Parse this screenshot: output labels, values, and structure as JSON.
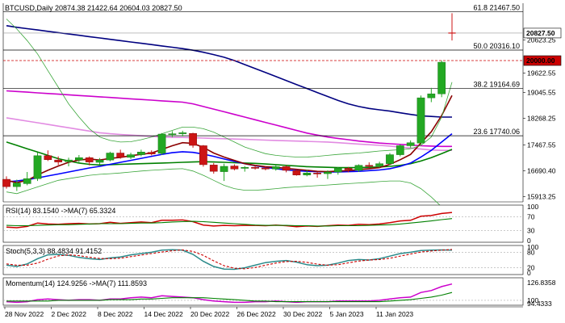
{
  "chart_data": {
    "type": "candlestick",
    "header": "BTCUSD,Daily  20874.38 21422.64 20604.03 20827.50",
    "symbol": "BTCUSD,Daily",
    "last_ohlc": {
      "open": 20874.38,
      "high": 21422.64,
      "low": 20604.03,
      "close": 20827.5
    },
    "y_ticks": [
      "20623.25",
      "19622.55",
      "19045.55",
      "18268.25",
      "17467.55",
      "16690.40",
      "15913.25"
    ],
    "price_badges": [
      {
        "label": "20827.50",
        "value": 20827.5,
        "bg": "#ffffff",
        "fg": "#000000",
        "line_color": "#999999"
      },
      {
        "label": "20000.00",
        "value": 20000.0,
        "bg": "#cc0000",
        "fg": "#ffffff",
        "line_color": "#cc0000"
      }
    ],
    "fib_levels": [
      {
        "label": "61.8 21467.50",
        "value": 21467.5
      },
      {
        "label": "50.0 20316.10",
        "value": 20316.1
      },
      {
        "label": "38.2 19164.69",
        "value": 19164.69
      },
      {
        "label": "23.6 17740.06",
        "value": 17740.06
      }
    ],
    "x_labels": [
      "28 Nov 2022",
      "2 Dec 2022",
      "8 Dec 2022",
      "14 Dec 2022",
      "20 Dec 2022",
      "26 Dec 2022",
      "30 Dec 2022",
      "5 Jan 2023",
      "11 Jan 2023"
    ],
    "ylim": [
      15800,
      21700
    ],
    "candles": [
      [
        16430,
        16520,
        16150,
        16210
      ],
      [
        16210,
        16420,
        16080,
        16320
      ],
      [
        16300,
        16650,
        16250,
        16450
      ],
      [
        16450,
        17230,
        16380,
        17140
      ],
      [
        17140,
        17300,
        16980,
        17020
      ],
      [
        17010,
        17120,
        16860,
        16950
      ],
      [
        16960,
        17080,
        16820,
        17010
      ],
      [
        17010,
        17160,
        16920,
        17080
      ],
      [
        17080,
        17120,
        16850,
        16950
      ],
      [
        16940,
        17070,
        16880,
        17010
      ],
      [
        17010,
        17260,
        16970,
        17220
      ],
      [
        17220,
        17320,
        17050,
        17090
      ],
      [
        17090,
        17230,
        17040,
        17170
      ],
      [
        17170,
        17320,
        17120,
        17250
      ],
      [
        17240,
        17300,
        17150,
        17190
      ],
      [
        17210,
        17820,
        17160,
        17790
      ],
      [
        17790,
        17880,
        17700,
        17800
      ],
      [
        17800,
        17890,
        17720,
        17830
      ],
      [
        17810,
        17830,
        17380,
        17450
      ],
      [
        17440,
        17460,
        16810,
        16870
      ],
      [
        16860,
        16920,
        16600,
        16670
      ],
      [
        16660,
        16900,
        16380,
        16820
      ],
      [
        16830,
        16880,
        16700,
        16740
      ],
      [
        16760,
        16830,
        16660,
        16790
      ],
      [
        16790,
        16850,
        16720,
        16770
      ],
      [
        16770,
        16830,
        16700,
        16740
      ],
      [
        16740,
        16850,
        16690,
        16810
      ],
      [
        16810,
        16850,
        16640,
        16700
      ],
      [
        16690,
        16720,
        16540,
        16560
      ],
      [
        16560,
        16720,
        16520,
        16620
      ],
      [
        16620,
        16650,
        16480,
        16600
      ],
      [
        16600,
        16700,
        16440,
        16650
      ],
      [
        16650,
        16800,
        16570,
        16760
      ],
      [
        16760,
        16800,
        16640,
        16720
      ],
      [
        16700,
        16880,
        16650,
        16850
      ],
      [
        16850,
        16940,
        16780,
        16820
      ],
      [
        16830,
        16960,
        16780,
        16900
      ],
      [
        16900,
        17220,
        16860,
        17170
      ],
      [
        17170,
        17480,
        17120,
        17440
      ],
      [
        17440,
        17600,
        17380,
        17530
      ],
      [
        17520,
        18950,
        17470,
        18880
      ],
      [
        18880,
        19180,
        18750,
        19000
      ],
      [
        19000,
        20000,
        18900,
        19950
      ],
      [
        20874.38,
        21422.64,
        20604.03,
        20827.5
      ]
    ],
    "overlay_series": [
      {
        "color": "#000080",
        "values": [
          21050,
          21000,
          20960,
          20920,
          20880,
          20840,
          20800,
          20760,
          20720,
          20680,
          20640,
          20600,
          20560,
          20520,
          20480,
          20440,
          20400,
          20360,
          20310,
          20250,
          20180,
          20100,
          20000,
          19880,
          19760,
          19640,
          19520,
          19400,
          19280,
          19160,
          19040,
          18920,
          18800,
          18700,
          18620,
          18560,
          18520,
          18480,
          18430,
          18380,
          18340,
          18320,
          18300,
          18300
        ]
      },
      {
        "color": "#cc00cc",
        "values": [
          19090,
          19070,
          19050,
          19030,
          19010,
          18990,
          18970,
          18950,
          18930,
          18910,
          18890,
          18870,
          18850,
          18830,
          18810,
          18790,
          18770,
          18750,
          18700,
          18620,
          18540,
          18460,
          18380,
          18300,
          18220,
          18140,
          18060,
          17980,
          17900,
          17820,
          17760,
          17700,
          17660,
          17620,
          17580,
          17550,
          17520,
          17500,
          17480,
          17460,
          17440,
          17430,
          17420,
          17420
        ]
      },
      {
        "color": "#e28be2",
        "values": [
          18280,
          18230,
          18180,
          18130,
          18080,
          18030,
          17980,
          17930,
          17880,
          17830,
          17800,
          17780,
          17760,
          17740,
          17720,
          17700,
          17690,
          17690,
          17680,
          17670,
          17660,
          17650,
          17640,
          17630,
          17620,
          17610,
          17600,
          17590,
          17580,
          17570,
          17560,
          17550,
          17530,
          17510,
          17490,
          17470,
          17450,
          17430,
          17400,
          17370,
          17340,
          17310,
          17300,
          17300
        ]
      },
      {
        "color": "#008000",
        "values": [
          17550,
          17450,
          17350,
          17250,
          17150,
          17050,
          16980,
          16920,
          16880,
          16860,
          16870,
          16880,
          16890,
          16900,
          16910,
          16920,
          16930,
          16940,
          16950,
          16960,
          16950,
          16940,
          16930,
          16920,
          16910,
          16890,
          16870,
          16850,
          16830,
          16810,
          16800,
          16790,
          16780,
          16780,
          16780,
          16790,
          16800,
          16820,
          16850,
          16900,
          16980,
          17080,
          17200,
          17330
        ]
      },
      {
        "color": "#0000ff",
        "values": [
          16350,
          16380,
          16420,
          16470,
          16530,
          16590,
          16650,
          16710,
          16770,
          16820,
          16880,
          16940,
          17000,
          17060,
          17120,
          17180,
          17230,
          17260,
          17240,
          17190,
          17120,
          17040,
          16970,
          16900,
          16840,
          16790,
          16750,
          16710,
          16690,
          16670,
          16660,
          16650,
          16650,
          16660,
          16670,
          16690,
          16710,
          16750,
          16820,
          16920,
          17100,
          17300,
          17550,
          17800
        ]
      },
      {
        "color": "#8b0000",
        "values": [
          16400,
          16330,
          16400,
          16560,
          16700,
          16830,
          16940,
          17010,
          17040,
          17010,
          17060,
          17090,
          17140,
          17180,
          17220,
          17330,
          17440,
          17530,
          17510,
          17390,
          17220,
          17100,
          17000,
          16900,
          16850,
          16810,
          16790,
          16760,
          16730,
          16700,
          16670,
          16660,
          16680,
          16690,
          16720,
          16750,
          16780,
          16880,
          17020,
          17180,
          17520,
          17860,
          18350,
          18950
        ]
      },
      {
        "color": "#3aa63a",
        "width": 0.8,
        "values": [
          21250,
          20950,
          20600,
          20200,
          19700,
          19200,
          18700,
          18300,
          17950,
          17700,
          17600,
          17550,
          17560,
          17620,
          17700,
          17800,
          17900,
          18000,
          18000,
          17950,
          17850,
          17700,
          17550,
          17400,
          17300,
          17200,
          17150,
          17120,
          17100,
          17100,
          17120,
          17150,
          17180,
          17200,
          17220,
          17250,
          17280,
          17300,
          17320,
          17350,
          17450,
          17700,
          18300,
          19350
        ]
      },
      {
        "color": "#3aa63a",
        "width": 0.8,
        "values": [
          16050,
          16000,
          16100,
          16200,
          16300,
          16400,
          16450,
          16500,
          16550,
          16580,
          16600,
          16620,
          16650,
          16680,
          16700,
          16720,
          16740,
          16750,
          16680,
          16550,
          16400,
          16250,
          16150,
          16100,
          16100,
          16120,
          16150,
          16180,
          16200,
          16220,
          16240,
          16260,
          16280,
          16300,
          16320,
          16340,
          16360,
          16380,
          16380,
          16320,
          16150,
          15900,
          15600,
          15300
        ]
      }
    ],
    "indicators": [
      {
        "title": "RSI(14) 83.1540  ->MA(7) 65.3324",
        "ylim": [
          0,
          100
        ],
        "ticks": [
          "100",
          "70",
          "30",
          "0"
        ],
        "levels": [
          70,
          30
        ],
        "series": [
          {
            "name": "RSI(14)",
            "color": "#cc0000",
            "values": [
              40,
              38,
              42,
              52,
              49,
              48,
              50,
              51,
              49,
              50,
              54,
              51,
              53,
              55,
              53,
              60,
              60,
              61,
              56,
              46,
              43,
              45,
              44,
              45,
              45,
              44,
              46,
              44,
              41,
              43,
              42,
              44,
              46,
              45,
              48,
              47,
              49,
              53,
              58,
              60,
              72,
              74,
              80,
              83
            ]
          },
          {
            "name": "MA(7)",
            "color": "#008000",
            "values": [
              45,
              44,
              44,
              45,
              46,
              47,
              47,
              48,
              49,
              50,
              50,
              50,
              51,
              52,
              52,
              53,
              55,
              56,
              57,
              56,
              54,
              52,
              50,
              48,
              46,
              45,
              45,
              45,
              44,
              44,
              43,
              43,
              44,
              44,
              44,
              45,
              46,
              47,
              49,
              52,
              55,
              58,
              62,
              65
            ]
          }
        ]
      },
      {
        "title": "Stoch(5,3,3) 88.4834 91.4152",
        "ylim": [
          0,
          100
        ],
        "ticks": [
          "100",
          "80",
          "20",
          "0"
        ],
        "levels": [
          80,
          20
        ],
        "series": [
          {
            "name": "Stoch",
            "color": "#2a8a8a",
            "values": [
              30,
              25,
              35,
              55,
              70,
              72,
              68,
              60,
              55,
              52,
              58,
              62,
              70,
              75,
              80,
              88,
              90,
              88,
              72,
              45,
              25,
              15,
              14,
              20,
              30,
              40,
              45,
              48,
              42,
              32,
              28,
              30,
              38,
              48,
              52,
              50,
              55,
              65,
              75,
              80,
              87,
              88,
              89,
              88
            ]
          },
          {
            "name": "Signal",
            "color": "#cc0000",
            "dashed": true,
            "values": [
              35,
              30,
              30,
              38,
              53,
              66,
              70,
              67,
              61,
              56,
              55,
              57,
              63,
              69,
              75,
              81,
              86,
              89,
              83,
              68,
              47,
              28,
              18,
              16,
              21,
              30,
              38,
              44,
              45,
              41,
              34,
              30,
              32,
              39,
              46,
              50,
              52,
              57,
              65,
              73,
              81,
              85,
              88,
              91
            ]
          }
        ]
      },
      {
        "title": "Momentum(14) 124.9256  ->MA(7) 111.8593",
        "ylim": [
          95,
          132
        ],
        "ticks": [
          "126.8358",
          "100",
          "94.4333"
        ],
        "levels": [
          100
        ],
        "series": [
          {
            "name": "Momentum(14)",
            "color": "#cc00cc",
            "values": [
              98,
              97,
              98,
              101,
              102,
              101,
              100,
              101,
              101,
              100,
              102,
              102,
              104,
              105,
              104,
              107,
              106,
              105,
              104,
              101,
              99,
              98,
              97,
              97,
              98,
              98,
              99,
              98,
              97,
              98,
              98,
              98,
              99,
              99,
              99,
              99,
              100,
              102,
              104,
              105,
              112,
              115,
              121,
              125
            ]
          },
          {
            "name": "MA(7)",
            "color": "#008000",
            "values": [
              99,
              99,
              99,
              99,
              99,
              100,
              100,
              100,
              100,
              100,
              101,
              101,
              101,
              102,
              102,
              103,
              104,
              104,
              104,
              104,
              103,
              102,
              101,
              100,
              99,
              99,
              98,
              98,
              98,
              98,
              98,
              98,
              98,
              98,
              98,
              98,
              98,
              99,
              100,
              101,
              103,
              105,
              108,
              112
            ]
          }
        ]
      }
    ]
  }
}
